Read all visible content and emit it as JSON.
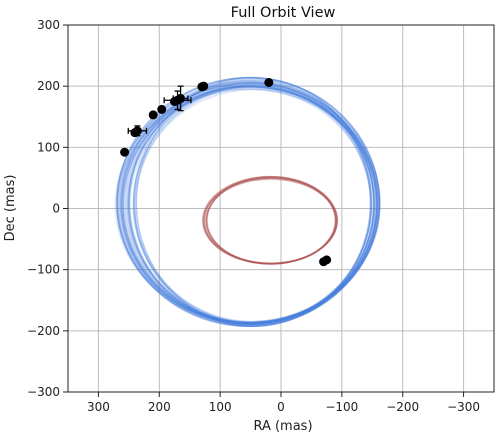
{
  "chart_data": {
    "type": "scatter",
    "title": "Full Orbit View",
    "xlabel": "RA (mas)",
    "ylabel": "Dec (mas)",
    "xlim": [
      350,
      -350
    ],
    "ylim": [
      -300,
      300
    ],
    "x_ticks": [
      300,
      200,
      100,
      0,
      -100,
      -200,
      -300
    ],
    "y_ticks": [
      -300,
      -200,
      -100,
      0,
      100,
      200,
      300
    ],
    "x_tick_labels": [
      "300",
      "200",
      "100",
      "0",
      "−100",
      "−200",
      "−300"
    ],
    "y_tick_labels": [
      "−300",
      "−200",
      "−100",
      "0",
      "100",
      "200",
      "300"
    ],
    "grid": true,
    "series": [
      {
        "kind": "orbit-ensemble",
        "color": "#4a7fe0",
        "orbit_center": [
          50,
          8
        ],
        "semi_axes": [
          205,
          197
        ],
        "spread": 26,
        "orbits": 60
      },
      {
        "kind": "orbit-ensemble",
        "color": "#b35a5a",
        "orbit_center": [
          17,
          -20
        ],
        "semi_axes": [
          108,
          70
        ],
        "spread": 6,
        "orbits": 25
      },
      {
        "kind": "points",
        "color": "#000000",
        "points": [
          {
            "x": 20,
            "y": 206,
            "xerr": 0,
            "yerr": 0
          },
          {
            "x": 127,
            "y": 200,
            "xerr": 0,
            "yerr": 0
          },
          {
            "x": 130,
            "y": 199,
            "xerr": 0,
            "yerr": 0
          },
          {
            "x": 165,
            "y": 180,
            "xerr": 12,
            "yerr": 20
          },
          {
            "x": 170,
            "y": 177,
            "xerr": 22,
            "yerr": 15
          },
          {
            "x": 175,
            "y": 175,
            "xerr": 0,
            "yerr": 0
          },
          {
            "x": 196,
            "y": 162,
            "xerr": 0,
            "yerr": 0
          },
          {
            "x": 210,
            "y": 153,
            "xerr": 0,
            "yerr": 0
          },
          {
            "x": 236,
            "y": 127,
            "xerr": 15,
            "yerr": 8
          },
          {
            "x": 240,
            "y": 124,
            "xerr": 0,
            "yerr": 0
          },
          {
            "x": 257,
            "y": 92,
            "xerr": 0,
            "yerr": 0
          },
          {
            "x": -70,
            "y": -87,
            "xerr": 0,
            "yerr": 0
          },
          {
            "x": -75,
            "y": -84,
            "xerr": 0,
            "yerr": 0
          }
        ]
      }
    ]
  }
}
